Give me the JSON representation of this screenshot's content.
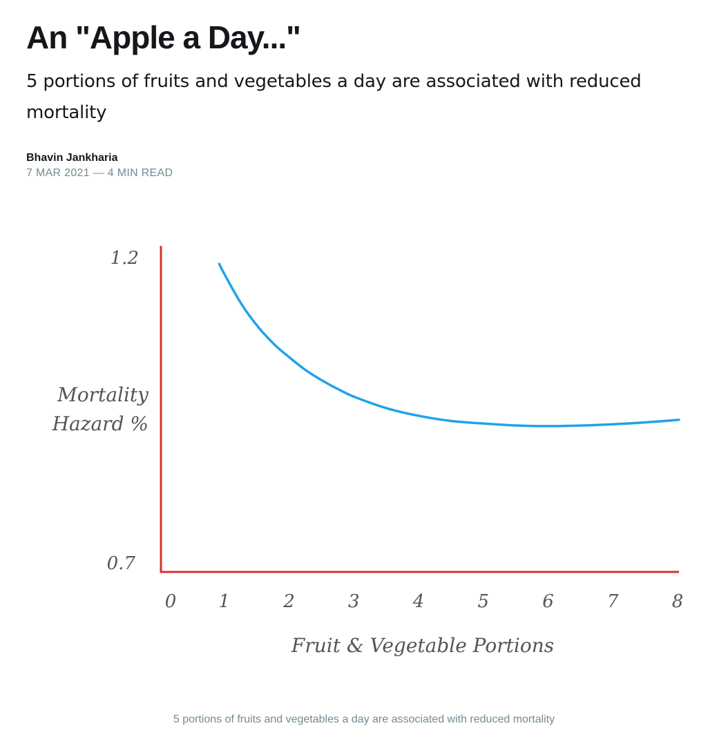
{
  "article": {
    "title": "An \"Apple a Day...\"",
    "subtitle": "5 portions of fruits and vegetables a day are associated with reduced mortality",
    "author": "Bhavin Jankharia",
    "date": "7 MAR 2021",
    "separator": "—",
    "read_time": "4 MIN READ"
  },
  "figure": {
    "caption": "5 portions of fruits and vegetables a day are associated with reduced mortality"
  },
  "chart_data": {
    "type": "line",
    "xlabel": "Fruit & Vegetable Portions",
    "ylabel_lines": [
      "Mortality",
      "Hazard %"
    ],
    "x_ticks": [
      "0",
      "1",
      "2",
      "3",
      "4",
      "5",
      "6",
      "7",
      "8"
    ],
    "y_ticks": [
      "1.2",
      "0.7"
    ],
    "xlim": [
      0,
      8
    ],
    "ylim": [
      0.7,
      1.2
    ],
    "grid": false,
    "axis_color": "#d9302a",
    "line_color": "#1fa3ea",
    "series": [
      {
        "x": [
          0.9,
          1.0,
          1.25,
          1.5,
          1.75,
          2.0,
          2.25,
          2.5,
          2.75,
          3.0,
          3.5,
          4.0,
          4.5,
          5.0,
          5.5,
          6.0,
          6.5,
          7.0,
          7.5,
          8.0
        ],
        "y": [
          1.19,
          1.17,
          1.125,
          1.09,
          1.062,
          1.04,
          1.02,
          1.004,
          0.99,
          0.978,
          0.96,
          0.948,
          0.94,
          0.936,
          0.933,
          0.932,
          0.933,
          0.935,
          0.938,
          0.942
        ]
      }
    ]
  }
}
